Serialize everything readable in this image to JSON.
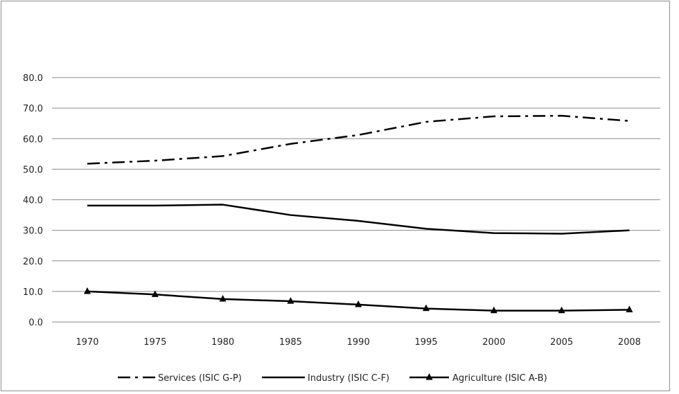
{
  "chart_data": {
    "type": "line",
    "categories": [
      "1970",
      "1975",
      "1980",
      "1985",
      "1990",
      "1995",
      "2000",
      "2005",
      "2008"
    ],
    "yticks": [
      "0.0",
      "10.0",
      "20.0",
      "30.0",
      "40.0",
      "50.0",
      "60.0",
      "70.0",
      "80.0"
    ],
    "ylim": [
      0,
      80
    ],
    "grid": true,
    "legend_position": "bottom",
    "series": [
      {
        "name": "Services (ISIC G-P)",
        "style": "dash-dot",
        "marker": "none",
        "color": "#000000",
        "values": [
          51.8,
          52.8,
          54.3,
          58.3,
          61.2,
          65.5,
          67.3,
          67.5,
          65.8
        ]
      },
      {
        "name": "Industry (ISIC C-F)",
        "style": "solid",
        "marker": "none",
        "color": "#000000",
        "values": [
          38.1,
          38.1,
          38.4,
          35.0,
          33.1,
          30.5,
          29.1,
          28.9,
          30.0
        ]
      },
      {
        "name": "Agriculture (ISIC A-B)",
        "style": "solid",
        "marker": "triangle",
        "color": "#000000",
        "values": [
          10.0,
          9.0,
          7.5,
          6.8,
          5.7,
          4.4,
          3.7,
          3.7,
          4.0
        ]
      }
    ]
  }
}
